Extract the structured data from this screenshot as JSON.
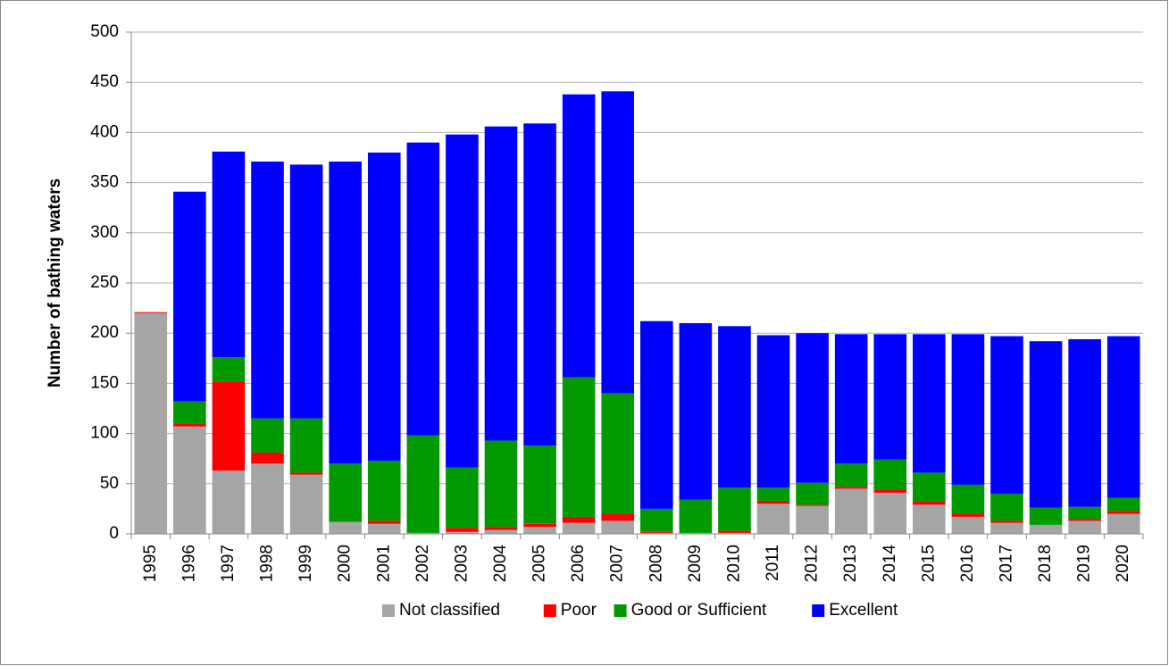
{
  "chart_data": {
    "type": "stacked-bar",
    "y_label": "Number of bathing waters",
    "categories": [
      "1995",
      "1996",
      "1997",
      "1998",
      "1999",
      "2000",
      "2001",
      "2002",
      "2003",
      "2004",
      "2005",
      "2006",
      "2007",
      "2008",
      "2009",
      "2010",
      "2011",
      "2012",
      "2013",
      "2014",
      "2015",
      "2016",
      "2017",
      "2018",
      "2019",
      "2020"
    ],
    "series": [
      {
        "name": "Not classified",
        "color": "#a5a5a5",
        "values": [
          220,
          107,
          63,
          70,
          59,
          12,
          10,
          1,
          2,
          4,
          7,
          11,
          13,
          1,
          1,
          1,
          30,
          28,
          45,
          41,
          29,
          17,
          11,
          9,
          13,
          20
        ]
      },
      {
        "name": "Poor",
        "color": "#ff0000",
        "values": [
          1,
          3,
          89,
          11,
          2,
          0,
          3,
          0,
          4,
          3,
          3,
          6,
          7,
          1,
          0,
          2,
          3,
          1,
          2,
          3,
          3,
          3,
          2,
          0,
          2,
          3
        ]
      },
      {
        "name": "Good or Sufficient",
        "color": "#009900",
        "values": [
          0,
          22,
          24,
          34,
          54,
          58,
          60,
          97,
          60,
          86,
          78,
          139,
          120,
          23,
          33,
          43,
          13,
          22,
          23,
          30,
          29,
          29,
          27,
          17,
          12,
          13
        ]
      },
      {
        "name": "Excellent",
        "color": "#0000ff",
        "values": [
          0,
          209,
          205,
          256,
          253,
          301,
          307,
          292,
          332,
          313,
          321,
          282,
          301,
          187,
          176,
          161,
          152,
          149,
          129,
          125,
          138,
          150,
          157,
          166,
          167,
          161
        ]
      }
    ],
    "ylim": [
      0,
      500
    ],
    "yticks": [
      0,
      50,
      100,
      150,
      200,
      250,
      300,
      350,
      400,
      450,
      500
    ],
    "grid": true,
    "legend": "bottom"
  }
}
